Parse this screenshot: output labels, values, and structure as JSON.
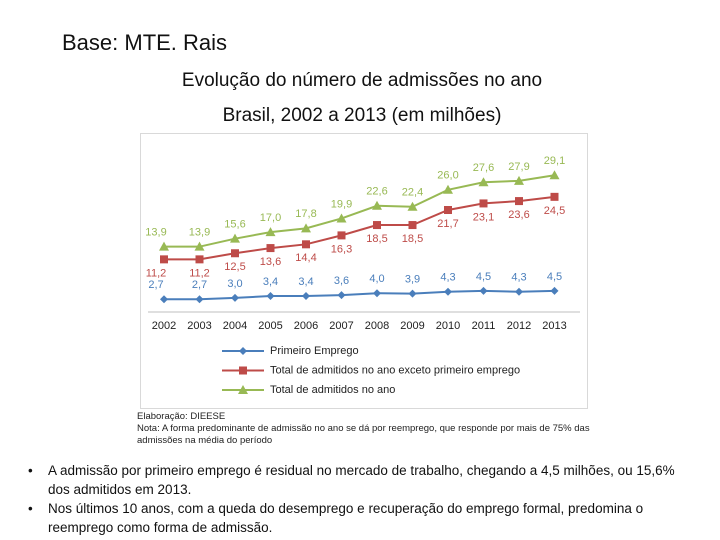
{
  "header": {
    "title": "Base: MTE. Rais"
  },
  "chart_data": {
    "type": "line",
    "title": "Evolução do número de admissões no ano",
    "subtitle": "Brasil, 2002 a 2013 (em milhões)",
    "categories": [
      "2002",
      "2003",
      "2004",
      "2005",
      "2006",
      "2007",
      "2008",
      "2009",
      "2010",
      "2011",
      "2012",
      "2013"
    ],
    "series": [
      {
        "name": "Primeiro Emprego",
        "color": "#4a7ebb",
        "marker": "diamond",
        "label_side": "above",
        "values": [
          2.7,
          2.7,
          3.0,
          3.4,
          3.4,
          3.6,
          4.0,
          3.9,
          4.3,
          4.5,
          4.3,
          4.5
        ],
        "value_labels": [
          "2,7",
          "2,7",
          "3,0",
          "3,4",
          "3,4",
          "3,6",
          "4,0",
          "3,9",
          "4,3",
          "4,5",
          "4,3",
          "4,5"
        ]
      },
      {
        "name": "Total de admitidos no ano exceto primeiro emprego",
        "color": "#be4b48",
        "marker": "square",
        "label_side": "below",
        "values": [
          11.2,
          11.2,
          12.5,
          13.6,
          14.4,
          16.3,
          18.5,
          18.5,
          21.7,
          23.1,
          23.6,
          24.5
        ],
        "value_labels": [
          "11,2",
          "11,2",
          "12,5",
          "13,6",
          "14,4",
          "16,3",
          "18,5",
          "18,5",
          "21,7",
          "23,1",
          "23,6",
          "24,5"
        ]
      },
      {
        "name": "Total de admitidos no ano",
        "color": "#98b954",
        "marker": "triangle",
        "label_side": "above",
        "values": [
          13.9,
          13.9,
          15.6,
          17.0,
          17.8,
          19.9,
          22.6,
          22.4,
          26.0,
          27.6,
          27.9,
          29.1
        ],
        "value_labels": [
          "13,9",
          "13,9",
          "15,6",
          "17,0",
          "17,8",
          "19,9",
          "22,6",
          "22,4",
          "26,0",
          "27,6",
          "27,9",
          "29,1"
        ]
      }
    ]
  },
  "notes": {
    "source": "Elaboração: DIEESE",
    "note": "Nota: A forma predominante de admissão no ano se dá por reemprego, que responde por mais de 75% das admissões na média do período"
  },
  "bullets": [
    "A admissão por primeiro emprego é residual no mercado de trabalho, chegando a 4,5 milhões, ou 15,6% dos admitidos em 2013.",
    "Nos últimos 10 anos, com a queda do desemprego e recuperação do emprego formal, predomina o reemprego como forma de admissão."
  ]
}
